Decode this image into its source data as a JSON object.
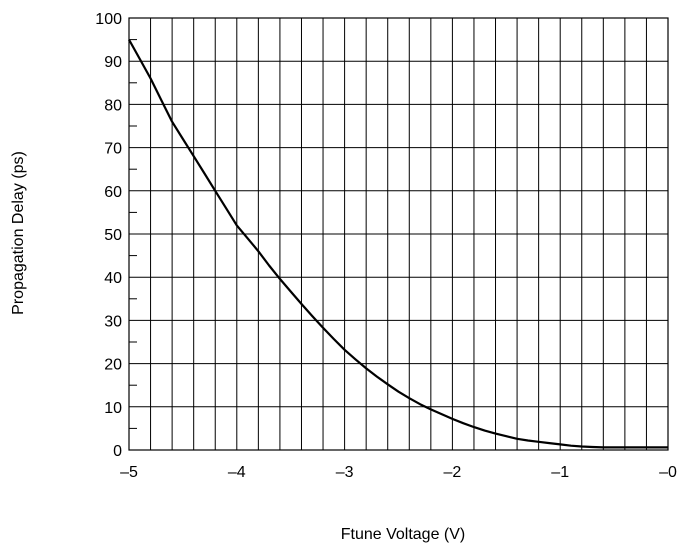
{
  "chart_data": {
    "type": "line",
    "xlabel": "Ftune Voltage (V)",
    "ylabel": "Propagation Delay (ps)",
    "xlim": [
      -5,
      0
    ],
    "ylim": [
      0,
      100
    ],
    "x_ticks": [
      -5,
      -4,
      -3,
      -2,
      -1,
      0
    ],
    "x_tick_labels": [
      "–5",
      "–4",
      "–3",
      "–2",
      "–1",
      "–0"
    ],
    "y_ticks": [
      0,
      10,
      20,
      30,
      40,
      50,
      60,
      70,
      80,
      90,
      100
    ],
    "y_tick_labels": [
      "0",
      "10",
      "20",
      "30",
      "40",
      "50",
      "60",
      "70",
      "80",
      "90",
      "100"
    ],
    "grid": true,
    "series": [
      {
        "x": [
          -5,
          -4.9,
          -4.8,
          -4.7,
          -4.6,
          -4.5,
          -4.4,
          -4.3,
          -4.2,
          -4.1,
          -4.0,
          -3.9,
          -3.8,
          -3.7,
          -3.6,
          -3.5,
          -3.4,
          -3.3,
          -3.2,
          -3.1,
          -3.0,
          -2.9,
          -2.8,
          -2.7,
          -2.6,
          -2.5,
          -2.4,
          -2.3,
          -2.2,
          -2.1,
          -2.0,
          -1.9,
          -1.8,
          -1.7,
          -1.6,
          -1.5,
          -1.4,
          -1.3,
          -1.2,
          -1.1,
          -1.0,
          -0.9,
          -0.8,
          -0.7,
          -0.6,
          -0.5,
          -0.4,
          -0.3,
          -0.2,
          -0.1,
          0.0
        ],
        "y": [
          95,
          90.5,
          86,
          81,
          76,
          72,
          68,
          64,
          60,
          56,
          52,
          49,
          46,
          42.7,
          39.6,
          36.7,
          33.8,
          31,
          28.3,
          25.7,
          23.2,
          21,
          18.9,
          17,
          15.2,
          13.5,
          12,
          10.6,
          9.4,
          8.3,
          7.2,
          6.2,
          5.3,
          4.5,
          3.8,
          3.2,
          2.6,
          2.2,
          1.9,
          1.6,
          1.3,
          1.0,
          0.8,
          0.7,
          0.6,
          0.6,
          0.6,
          0.6,
          0.6,
          0.6,
          0.6
        ]
      }
    ]
  }
}
